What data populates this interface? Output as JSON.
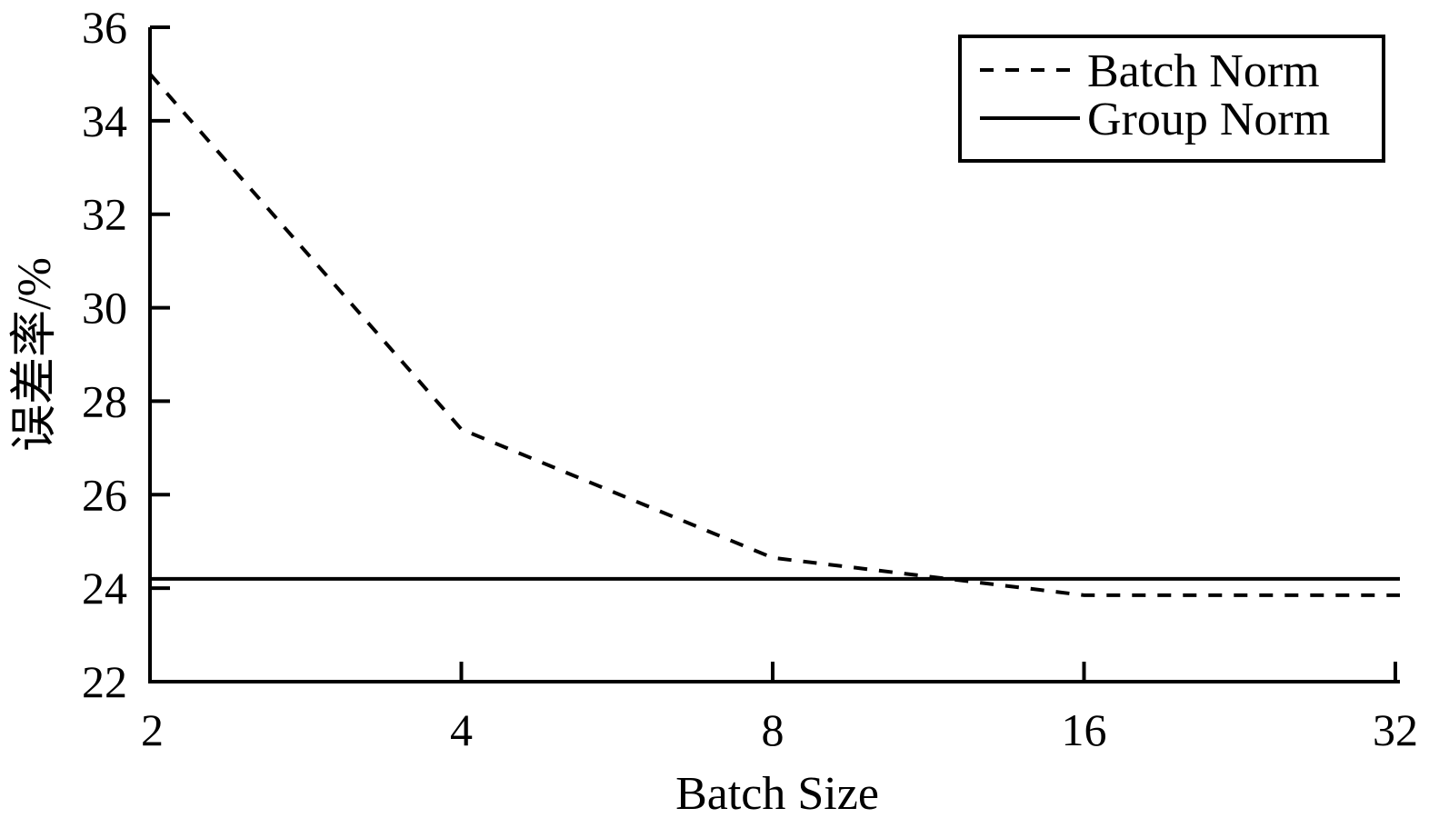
{
  "chart_data": {
    "type": "line",
    "x_scale": "log2",
    "x": [
      2,
      4,
      8,
      16,
      32
    ],
    "x_tick_labels": [
      "2",
      "4",
      "8",
      "16",
      "32"
    ],
    "xlim": [
      2,
      32
    ],
    "ylim": [
      22,
      36
    ],
    "y_ticks": [
      22,
      24,
      26,
      28,
      30,
      32,
      34,
      36
    ],
    "y_tick_labels": [
      "22",
      "24",
      "26",
      "28",
      "30",
      "32",
      "34",
      "36"
    ],
    "xlabel": "Batch Size",
    "ylabel": "误差率/%",
    "grid": false,
    "legend_position": "top-right",
    "series": [
      {
        "name": "Batch Norm",
        "style": "dashed",
        "color": "#000000",
        "values": [
          35.0,
          27.4,
          24.65,
          23.85,
          23.85
        ]
      },
      {
        "name": "Group Norm",
        "style": "solid",
        "color": "#000000",
        "values": [
          24.2,
          24.2,
          24.2,
          24.2,
          24.2
        ]
      }
    ]
  }
}
